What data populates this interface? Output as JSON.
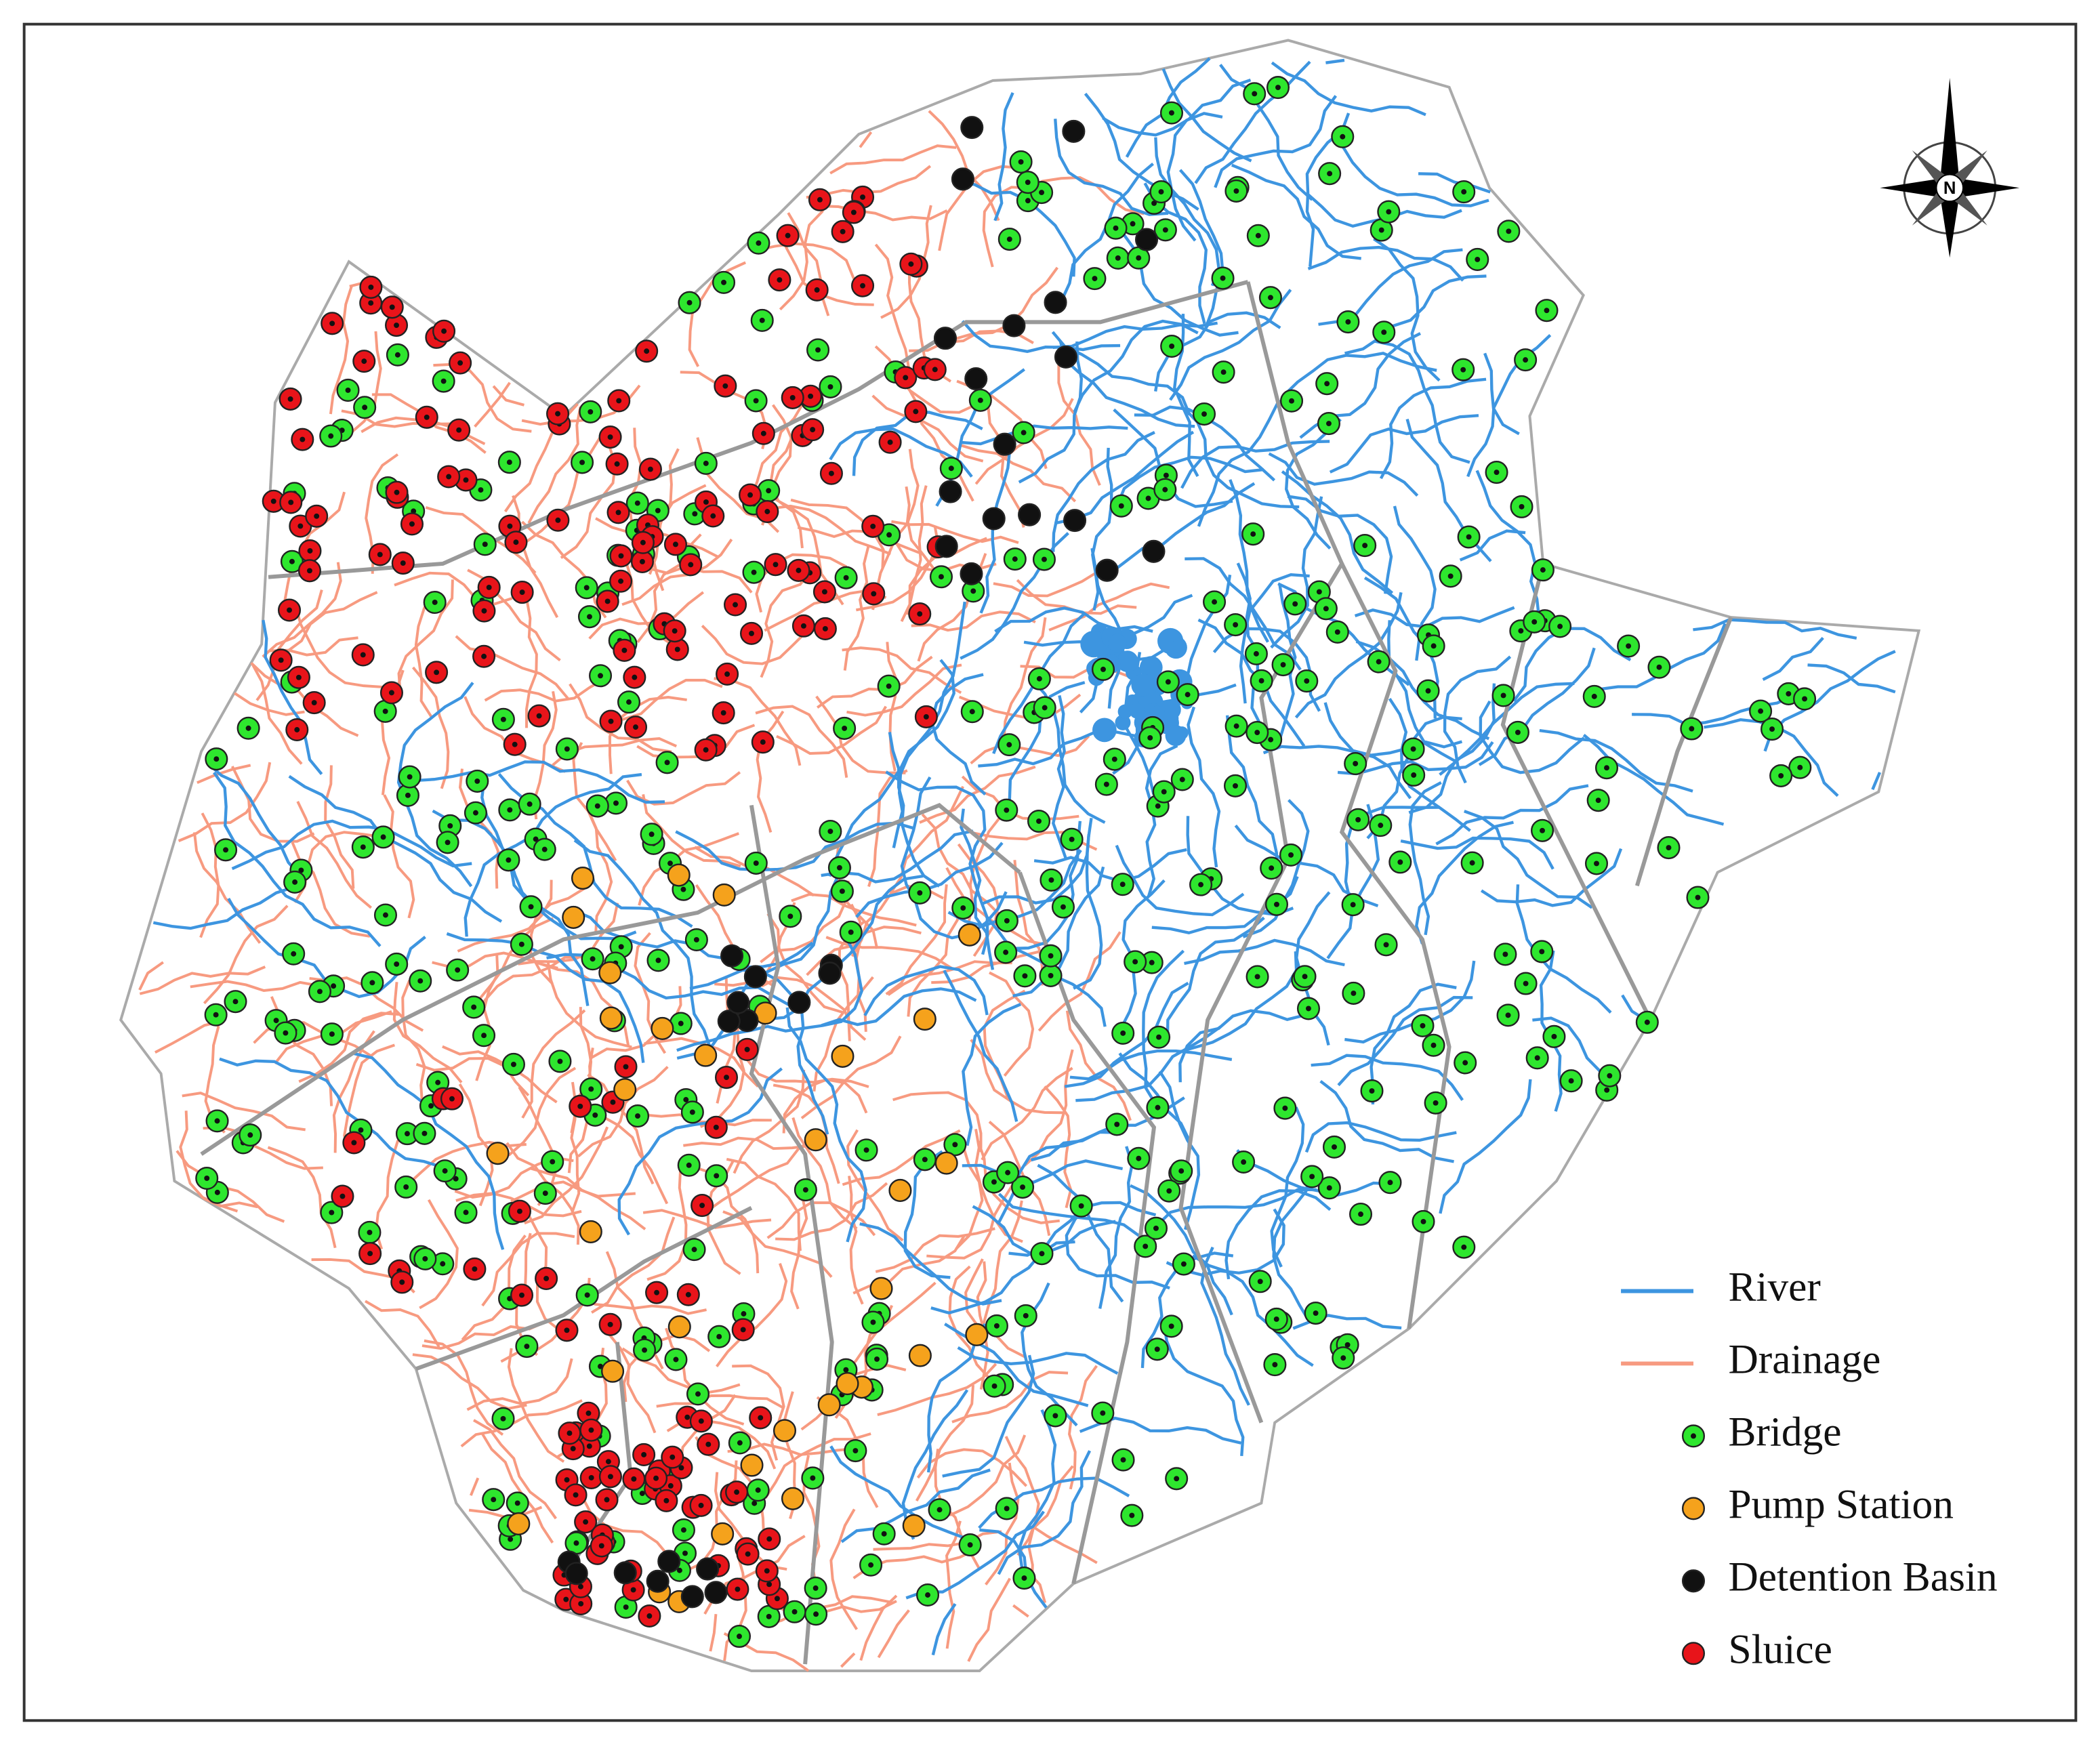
{
  "legend": {
    "items": [
      {
        "label": "River",
        "color": "#3d95e0",
        "kind": "line"
      },
      {
        "label": "Drainage",
        "color": "#f79a80",
        "kind": "line"
      },
      {
        "label": "Bridge",
        "color": "#2ee62e",
        "kind": "dot"
      },
      {
        "label": "Pump Station",
        "color": "#f5a21c",
        "kind": "dot"
      },
      {
        "label": "Detention Basin",
        "color": "#111111",
        "kind": "dot"
      },
      {
        "label": "Sluice",
        "color": "#e8141a",
        "kind": "dot"
      }
    ]
  },
  "compass": "N"
}
